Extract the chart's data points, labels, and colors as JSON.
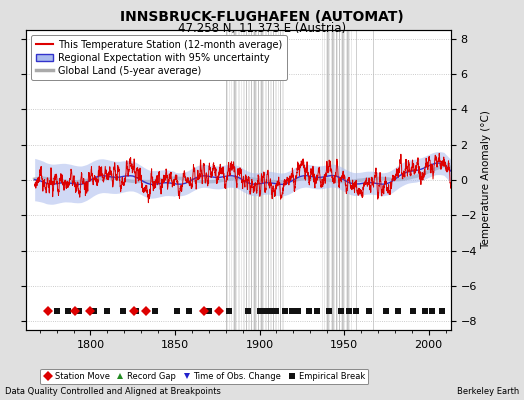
{
  "title": "INNSBRUCK-FLUGHAFEN (AUTOMAT)",
  "subtitle": "47.258 N, 11.373 E (Austria)",
  "ylabel": "Temperature Anomaly (°C)",
  "xlabel_left": "Data Quality Controlled and Aligned at Breakpoints",
  "xlabel_right": "Berkeley Earth",
  "ylim": [
    -8.5,
    8.5
  ],
  "xlim": [
    1762,
    2013
  ],
  "yticks": [
    -8,
    -6,
    -4,
    -2,
    0,
    2,
    4,
    6,
    8
  ],
  "xticks": [
    1800,
    1850,
    1900,
    1950,
    2000
  ],
  "bg_color": "#e0e0e0",
  "plot_bg_color": "#ffffff",
  "station_color": "#dd0000",
  "regional_color": "#3333cc",
  "regional_fill_color": "#aabbee",
  "global_color": "#aaaaaa",
  "grid_color": "#cccccc",
  "legend_fontsize": 7,
  "station_moves": [
    1775,
    1791,
    1800,
    1826,
    1833,
    1867,
    1876
  ],
  "record_gaps": [],
  "obs_changes": [],
  "emp_breaks": [
    1780,
    1787,
    1793,
    1802,
    1810,
    1819,
    1827,
    1838,
    1851,
    1858,
    1870,
    1882,
    1893,
    1900,
    1903,
    1906,
    1910,
    1915,
    1919,
    1923,
    1929,
    1934,
    1941,
    1948,
    1953,
    1957,
    1965,
    1975,
    1982,
    1991,
    1998,
    2002,
    2008
  ],
  "vertical_shading": [
    1880,
    1885,
    1892,
    1895,
    1897,
    1899,
    1901,
    1905,
    1908,
    1912,
    1940,
    1943,
    1945,
    1947,
    1949,
    1952,
    1957,
    1967
  ],
  "seed": 123,
  "start_year": 1767,
  "end_year": 2013
}
